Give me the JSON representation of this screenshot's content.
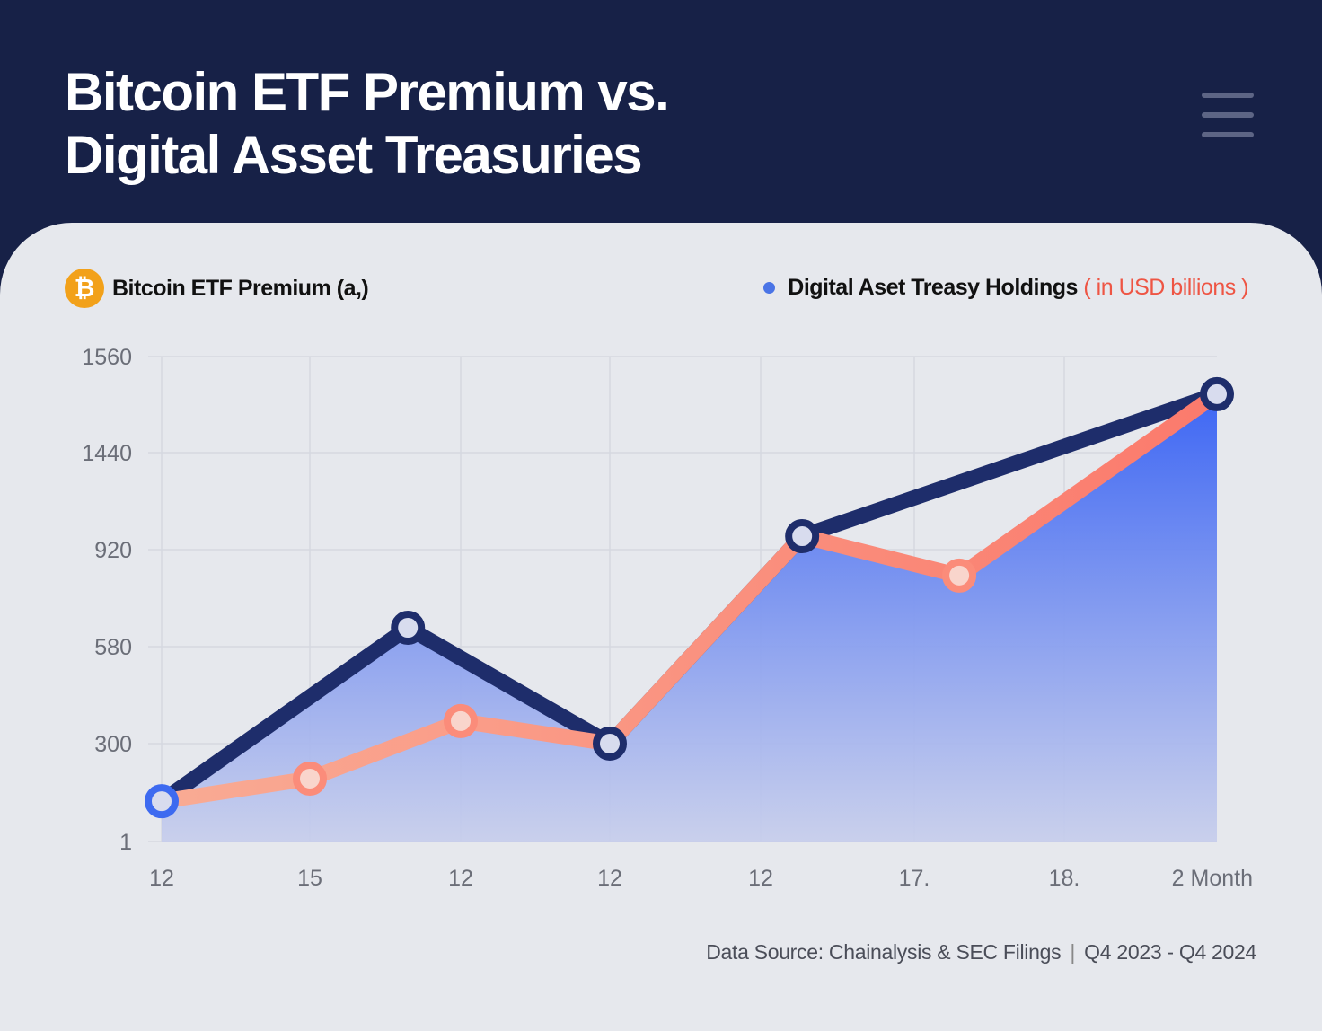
{
  "header": {
    "title_line1": "Bitcoin ETF Premium vs.",
    "title_line2": "Digital Asset Treasuries",
    "menu_icon": "hamburger-menu-icon"
  },
  "legend": {
    "left": {
      "icon": "bitcoin-icon",
      "icon_glyph": "₿",
      "label": "Bitcoin ETF Premium (a,)"
    },
    "right": {
      "label": "Digital Aset Treasy Holdings",
      "unit": "( in USD billions )"
    }
  },
  "colors": {
    "header": "#172147",
    "navy_series": "#1e2d6b",
    "salmon_series": "#f98a78",
    "area_fill": "#3f68f3",
    "first_marker": "#3d6af0"
  },
  "chart_data": {
    "type": "line",
    "y_ticks": [
      {
        "value": 1,
        "label": "1"
      },
      {
        "value": 300,
        "label": "300"
      },
      {
        "value": 580,
        "label": "580"
      },
      {
        "value": 920,
        "label": "920"
      },
      {
        "value": 1440,
        "label": "1440"
      },
      {
        "value": 1560,
        "label": "1560"
      }
    ],
    "x_tick_labels": [
      "12",
      "15",
      "12",
      "12",
      "12",
      "17.",
      "18.",
      "2 Month"
    ],
    "grid": true,
    "area_fill_under_upper_line": true,
    "series": [
      {
        "color": "#1e2d6b",
        "points": [
          [
            0,
            124
          ],
          [
            1.65,
            646
          ],
          [
            3,
            300
          ],
          [
            4.27,
            992
          ],
          [
            7,
            1513
          ]
        ]
      },
      {
        "color": "#f98a78",
        "points": [
          [
            0,
            124
          ],
          [
            1,
            193
          ],
          [
            2,
            365
          ],
          [
            3,
            300
          ],
          [
            4.27,
            992
          ],
          [
            5.3,
            829
          ],
          [
            7,
            1513
          ]
        ]
      }
    ]
  },
  "footer": {
    "source": "Data Source: Chainalysis & SEC Filings",
    "period": "Q4 2023 - Q4 2024"
  }
}
